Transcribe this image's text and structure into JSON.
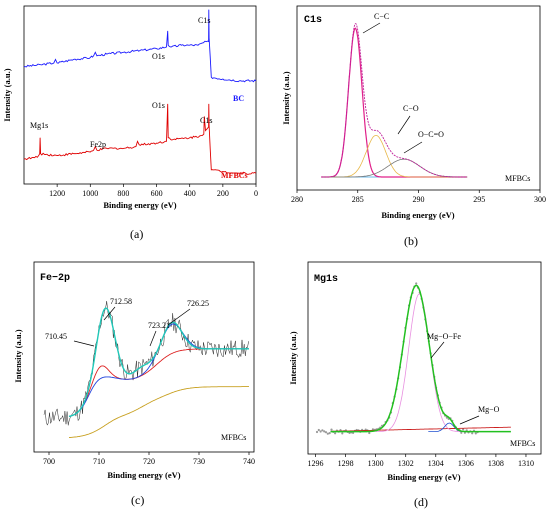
{
  "chart_data": [
    {
      "type": "line",
      "panel_label": "(a)",
      "xlabel": "Binding energy (eV)",
      "ylabel": "Intensity (a.u.)",
      "xlim": [
        1400,
        0
      ],
      "xticks": [
        1200,
        1000,
        800,
        600,
        400,
        200,
        0
      ],
      "series": [
        {
          "name": "BC",
          "color": "#1a1aff",
          "points": [
            [
              1400,
              0.66
            ],
            [
              1300,
              0.67
            ],
            [
              1220,
              0.68
            ],
            [
              1210,
              0.7
            ],
            [
              1200,
              0.68
            ],
            [
              1100,
              0.7
            ],
            [
              1000,
              0.71
            ],
            [
              980,
              0.72
            ],
            [
              970,
              0.74
            ],
            [
              960,
              0.72
            ],
            [
              900,
              0.73
            ],
            [
              800,
              0.74
            ],
            [
              700,
              0.75
            ],
            [
              600,
              0.76
            ],
            [
              540,
              0.77
            ],
            [
              533,
              0.86
            ],
            [
              530,
              0.78
            ],
            [
              510,
              0.77
            ],
            [
              450,
              0.78
            ],
            [
              400,
              0.78
            ],
            [
              350,
              0.78
            ],
            [
              300,
              0.8
            ],
            [
              286,
              0.8
            ],
            [
              285,
              0.98
            ],
            [
              283,
              0.82
            ],
            [
              270,
              0.6
            ],
            [
              200,
              0.59
            ],
            [
              100,
              0.58
            ],
            [
              0,
              0.58
            ]
          ]
        },
        {
          "name": "MFBCs",
          "color": "#e00000",
          "points": [
            [
              1400,
              0.14
            ],
            [
              1320,
              0.15
            ],
            [
              1305,
              0.17
            ],
            [
              1303,
              0.26
            ],
            [
              1300,
              0.17
            ],
            [
              1200,
              0.16
            ],
            [
              1100,
              0.17
            ],
            [
              1000,
              0.18
            ],
            [
              980,
              0.19
            ],
            [
              970,
              0.21
            ],
            [
              960,
              0.19
            ],
            [
              900,
              0.2
            ],
            [
              800,
              0.2
            ],
            [
              725,
              0.21
            ],
            [
              715,
              0.24
            ],
            [
              705,
              0.22
            ],
            [
              600,
              0.23
            ],
            [
              540,
              0.24
            ],
            [
              533,
              0.45
            ],
            [
              530,
              0.26
            ],
            [
              500,
              0.25
            ],
            [
              400,
              0.26
            ],
            [
              340,
              0.27
            ],
            [
              315,
              0.28
            ],
            [
              312,
              0.38
            ],
            [
              305,
              0.3
            ],
            [
              295,
              0.31
            ],
            [
              286,
              0.32
            ],
            [
              285,
              0.45
            ],
            [
              283,
              0.33
            ],
            [
              270,
              0.08
            ],
            [
              200,
              0.07
            ],
            [
              100,
              0.06
            ],
            [
              0,
              0.06
            ]
          ]
        }
      ],
      "labels": [
        "O1s",
        "C1s",
        "O1s",
        "C1s",
        "Mg1s",
        "Fe2p"
      ],
      "legend": [
        "BC",
        "MFBCs"
      ]
    },
    {
      "type": "line",
      "panel_label": "(b)",
      "title": "C1s",
      "xlabel": "Binding energy (eV)",
      "ylabel": "Intensity (a.u.)",
      "xlim": [
        280,
        300
      ],
      "xticks": [
        280,
        285,
        290,
        295,
        300
      ],
      "sample_label": "MFBCs",
      "peaks": [
        {
          "name": "C−C",
          "center": 284.8,
          "height": 1.0,
          "sigma": 0.55,
          "color": "#e0218a"
        },
        {
          "name": "C−O",
          "center": 286.5,
          "height": 0.28,
          "sigma": 0.8,
          "color": "#e8b84a"
        },
        {
          "name": "O−C=O",
          "center": 288.8,
          "height": 0.12,
          "sigma": 1.3,
          "color": "#777777"
        }
      ],
      "baseline": 0.02
    },
    {
      "type": "line",
      "panel_label": "(c)",
      "title": "Fe−2p",
      "xlabel": "Binding energy (eV)",
      "ylabel": "Intensity (a.u.)",
      "xlim": [
        697,
        741
      ],
      "xticks": [
        700,
        710,
        720,
        730,
        740
      ],
      "sample_label": "MFBCs",
      "peak_labels": [
        "710.45",
        "712.58",
        "723.21",
        "726.25"
      ]
    },
    {
      "type": "line",
      "panel_label": "(d)",
      "title": "Mg1s",
      "xlabel": "Binding energy (eV)",
      "ylabel": "Intensity (a.u.)",
      "xlim": [
        1295.5,
        1311
      ],
      "xticks": [
        1296,
        1298,
        1300,
        1302,
        1304,
        1306,
        1308,
        1310
      ],
      "sample_label": "MFBCs",
      "peak_labels": [
        "Mg−O−Fe",
        "Mg−O"
      ]
    }
  ]
}
